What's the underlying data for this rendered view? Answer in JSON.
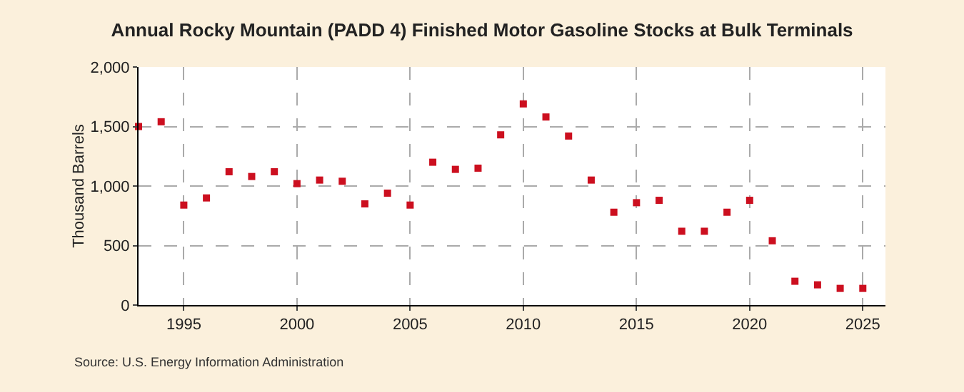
{
  "chart_data": {
    "type": "scatter",
    "title": "Annual Rocky Mountain (PADD 4) Finished Motor Gasoline Stocks at Bulk Terminals",
    "ylabel": "Thousand Barrels",
    "x": [
      1993,
      1994,
      1995,
      1996,
      1997,
      1998,
      1999,
      2000,
      2001,
      2002,
      2003,
      2004,
      2005,
      2006,
      2007,
      2008,
      2009,
      2010,
      2011,
      2012,
      2013,
      2014,
      2015,
      2016,
      2017,
      2018,
      2019,
      2020,
      2021,
      2022,
      2023,
      2024,
      2025
    ],
    "series": [
      {
        "color": "#cc0f1f",
        "values": [
          1500,
          1540,
          840,
          900,
          1120,
          1080,
          1120,
          1020,
          1050,
          1040,
          850,
          940,
          840,
          1200,
          1140,
          1150,
          1430,
          1690,
          1580,
          1420,
          1050,
          780,
          860,
          880,
          620,
          620,
          780,
          880,
          540,
          200,
          170,
          140,
          140
        ]
      }
    ],
    "xlim": [
      1993,
      2026
    ],
    "xticks": [
      1995,
      2000,
      2005,
      2010,
      2015,
      2020,
      2025
    ],
    "ylim": [
      0,
      2000
    ],
    "yticks": [
      {
        "value": 0,
        "label": "0"
      },
      {
        "value": 500,
        "label": "500"
      },
      {
        "value": 1000,
        "label": "1,000"
      },
      {
        "value": 1500,
        "label": "1,500"
      },
      {
        "value": 2000,
        "label": "2,000"
      }
    ],
    "grid": true,
    "marker": "square",
    "annotations": [
      "Source: U.S. Energy Information Administration"
    ]
  }
}
